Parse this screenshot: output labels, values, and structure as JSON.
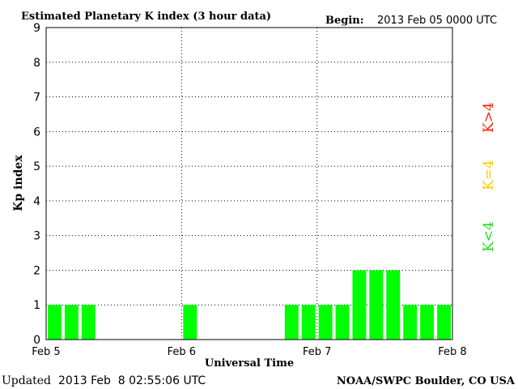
{
  "header": {
    "title": "Estimated Planetary K index (3 hour data)",
    "begin_label": "Begin:",
    "begin_value": "2013 Feb 05 0000 UTC"
  },
  "footer": {
    "updated_label": "Updated",
    "updated_value": "2013 Feb  8 02:55:06 UTC",
    "source": "NOAA/SWPC Boulder, CO USA"
  },
  "legend": {
    "k_gt_4": "K>4",
    "k_eq_4": "K=4",
    "k_lt_4": "K<4"
  },
  "colors": {
    "bar": "#00ff00",
    "k_gt_4": "#ff2200",
    "k_eq_4": "#ffcc00",
    "k_lt_4": "#22dd22",
    "frame": "#000000"
  },
  "chart_data": {
    "type": "bar",
    "title": "Estimated Planetary K index (3 hour data)",
    "xlabel": "Universal Time",
    "ylabel": "Kp index",
    "ylim": [
      0,
      9
    ],
    "y_ticks": [
      "0",
      "1",
      "2",
      "3",
      "4",
      "5",
      "6",
      "7",
      "8",
      "9"
    ],
    "x_ticks": [
      "Feb 5",
      "Feb 6",
      "Feb 7",
      "Feb 8"
    ],
    "grid": true,
    "periods": [
      "Feb 5 00-03",
      "Feb 5 03-06",
      "Feb 5 06-09",
      "Feb 5 09-12",
      "Feb 5 12-15",
      "Feb 5 15-18",
      "Feb 5 18-21",
      "Feb 5 21-24",
      "Feb 6 00-03",
      "Feb 6 03-06",
      "Feb 6 06-09",
      "Feb 6 09-12",
      "Feb 6 12-15",
      "Feb 6 15-18",
      "Feb 6 18-21",
      "Feb 6 21-24",
      "Feb 7 00-03",
      "Feb 7 03-06",
      "Feb 7 06-09",
      "Feb 7 09-12",
      "Feb 7 12-15",
      "Feb 7 15-18",
      "Feb 7 18-21",
      "Feb 7 21-24"
    ],
    "values": [
      1,
      1,
      1,
      0,
      0,
      0,
      0,
      0,
      1,
      0,
      0,
      0,
      0,
      0,
      1,
      1,
      1,
      1,
      2,
      2,
      2,
      1,
      1,
      1
    ]
  }
}
